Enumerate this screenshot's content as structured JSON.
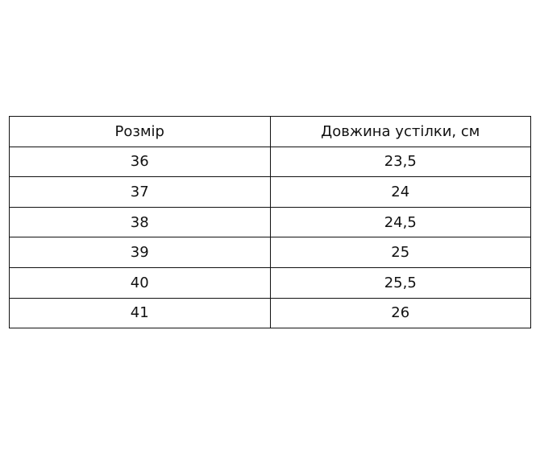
{
  "table": {
    "headers": [
      "Розмір",
      "Довжина устілки, см"
    ],
    "rows": [
      [
        "36",
        "23,5"
      ],
      [
        "37",
        "24"
      ],
      [
        "38",
        "24,5"
      ],
      [
        "39",
        "25"
      ],
      [
        "40",
        "25,5"
      ],
      [
        "41",
        "26"
      ]
    ]
  }
}
